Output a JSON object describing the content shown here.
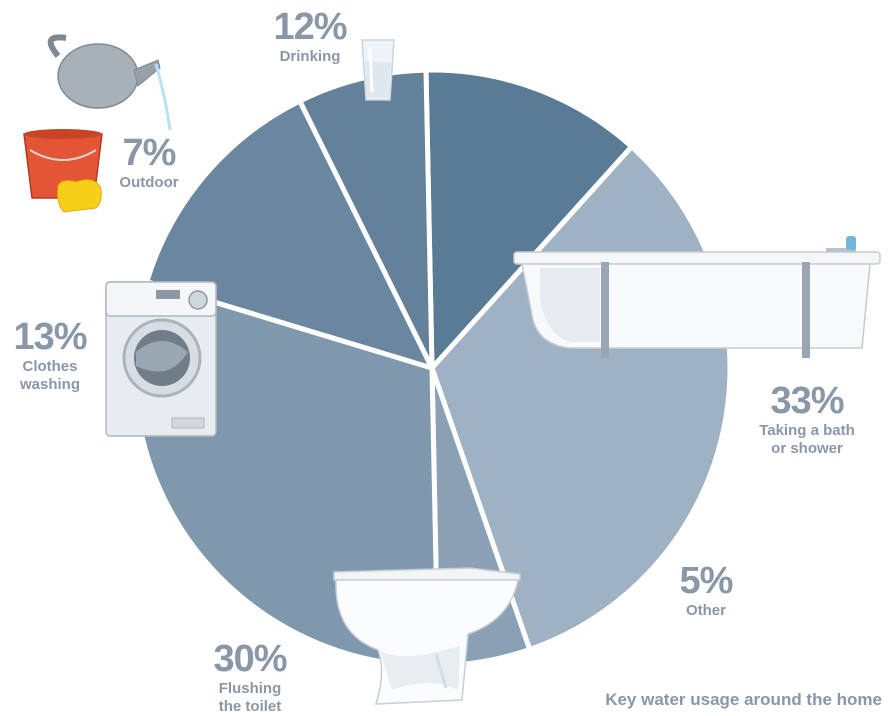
{
  "chart_data": {
    "type": "pie",
    "title": "Key water usage around the home",
    "categories": [
      "Drinking",
      "Taking a bath or shower",
      "Other",
      "Flushing the toilet",
      "Clothes washing",
      "Outdoor"
    ],
    "values": [
      12,
      33,
      5,
      30,
      13,
      7
    ],
    "value_labels": [
      "12%",
      "33%",
      "5%",
      "30%",
      "13%",
      "7%"
    ],
    "label_lines": [
      [
        "Drinking"
      ],
      [
        "Taking a bath",
        "or shower"
      ],
      [
        "Other"
      ],
      [
        "Flushing",
        "the toilet"
      ],
      [
        "Clothes",
        "washing"
      ],
      [
        "Outdoor"
      ]
    ],
    "colors": [
      "#5a7b96",
      "#9fb2c3",
      "#8aa1b5",
      "#7f98ae",
      "#6b879f",
      "#64819a"
    ],
    "legend": "none"
  },
  "icons": [
    "glass-of-water-icon",
    "bathtub-icon",
    "toilet-icon",
    "washing-machine-icon",
    "watering-can-icon",
    "bucket-icon",
    "sponge-icon"
  ]
}
